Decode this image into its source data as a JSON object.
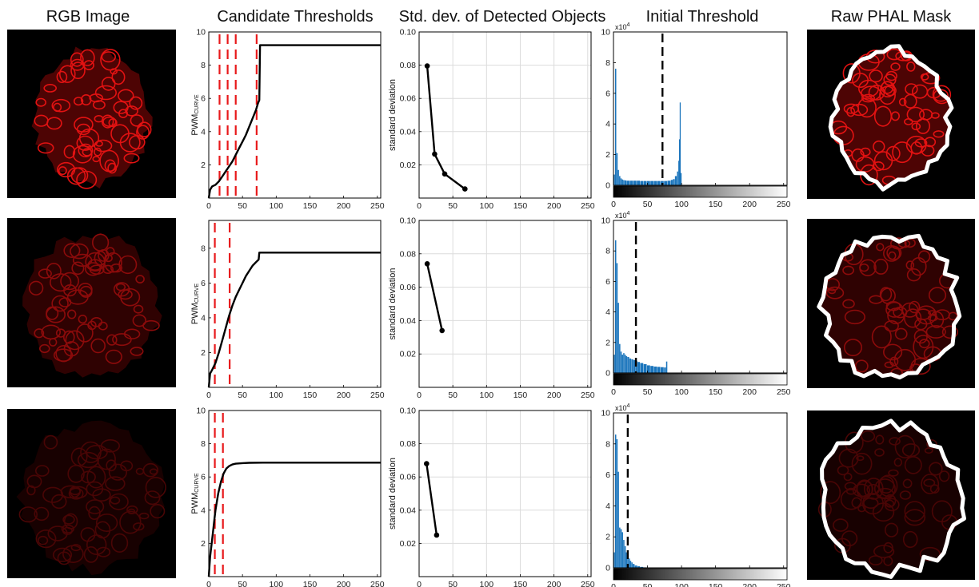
{
  "column_titles": [
    "RGB Image",
    "Candidate Thresholds",
    "Std. dev. of Detected Objects",
    "Initial Threshold",
    "Raw PHAL Mask"
  ],
  "colors": {
    "curve": "#000000",
    "threshold_marker": "#e8191b",
    "histogram": "#1b75bc",
    "mask_outline": "#ffffff",
    "cell_red": "#e21212",
    "image_bg": "#000000",
    "grid": "#dcdcdc"
  },
  "chart_data": [
    {
      "type": "line",
      "panel": "Candidate Thresholds",
      "row": 1,
      "ylabel_main": "PWM",
      "ylabel_sub": "CURVE",
      "xlim": [
        0,
        255
      ],
      "ylim": [
        0,
        10
      ],
      "xticks": [
        0,
        50,
        100,
        150,
        200,
        250
      ],
      "yticks": [
        2,
        4,
        6,
        8,
        10
      ],
      "series": [
        {
          "x": [
            0,
            2,
            5,
            10,
            15,
            20,
            25,
            30,
            35,
            40,
            45,
            50,
            55,
            60,
            65,
            70,
            73,
            75,
            76,
            80,
            120,
            180,
            255
          ],
          "y": [
            0,
            0.5,
            0.7,
            0.8,
            1.0,
            1.3,
            1.6,
            1.9,
            2.2,
            2.6,
            3.0,
            3.4,
            3.8,
            4.3,
            4.8,
            5.3,
            5.7,
            5.9,
            9.2,
            9.2,
            9.2,
            9.2,
            9.2
          ]
        }
      ],
      "thresholds": [
        16,
        28,
        40,
        71
      ]
    },
    {
      "type": "line",
      "panel": "Candidate Thresholds",
      "row": 2,
      "ylabel_main": "PWM",
      "ylabel_sub": "CURVE",
      "xlim": [
        0,
        255
      ],
      "ylim": [
        0,
        9.6
      ],
      "xticks": [
        0,
        50,
        100,
        150,
        200,
        250
      ],
      "yticks": [
        2,
        4,
        6,
        8
      ],
      "series": [
        {
          "x": [
            0,
            2,
            5,
            10,
            15,
            20,
            25,
            30,
            35,
            40,
            45,
            50,
            55,
            60,
            65,
            70,
            74,
            75,
            76,
            100,
            180,
            255
          ],
          "y": [
            0,
            0.8,
            1.0,
            1.4,
            2.0,
            2.7,
            3.4,
            4.1,
            4.7,
            5.2,
            5.6,
            6.0,
            6.4,
            6.7,
            7.0,
            7.2,
            7.35,
            7.75,
            7.75,
            7.75,
            7.75,
            7.75
          ]
        }
      ],
      "thresholds": [
        9,
        31
      ]
    },
    {
      "type": "line",
      "panel": "Candidate Thresholds",
      "row": 3,
      "ylabel_main": "PWM",
      "ylabel_sub": "CURVE",
      "xlim": [
        0,
        255
      ],
      "ylim": [
        0,
        10
      ],
      "xticks": [
        0,
        50,
        100,
        150,
        200,
        250
      ],
      "yticks": [
        2,
        4,
        6,
        8,
        10
      ],
      "series": [
        {
          "x": [
            0,
            2,
            4,
            6,
            8,
            10,
            14,
            18,
            22,
            26,
            30,
            35,
            40,
            50,
            60,
            80,
            120,
            200,
            255
          ],
          "y": [
            0,
            1.2,
            1.9,
            2.6,
            3.3,
            4.0,
            5.0,
            5.7,
            6.2,
            6.5,
            6.65,
            6.75,
            6.8,
            6.83,
            6.85,
            6.86,
            6.86,
            6.86,
            6.86
          ]
        }
      ],
      "thresholds": [
        9,
        21
      ]
    },
    {
      "type": "line",
      "panel": "Std. dev. of Detected Objects",
      "row": 1,
      "ylabel": "standard deviation",
      "xlim": [
        0,
        255
      ],
      "ylim": [
        0,
        0.1
      ],
      "xticks": [
        0,
        50,
        100,
        150,
        200,
        250
      ],
      "yticks": [
        0.02,
        0.04,
        0.06,
        0.08,
        0.1
      ],
      "ytick_labels": [
        "0.02",
        "0.04",
        "0.06",
        "0.08",
        "0.10"
      ],
      "series": [
        {
          "x": [
            12,
            23,
            38,
            68
          ],
          "y": [
            0.0795,
            0.0265,
            0.0145,
            0.0055
          ]
        }
      ]
    },
    {
      "type": "line",
      "panel": "Std. dev. of Detected Objects",
      "row": 2,
      "ylabel": "standard deviation",
      "xlim": [
        0,
        255
      ],
      "ylim": [
        0,
        0.1
      ],
      "xticks": [
        0,
        50,
        100,
        150,
        200,
        250
      ],
      "yticks": [
        0.02,
        0.04,
        0.06,
        0.08,
        0.1
      ],
      "ytick_labels": [
        "0.02",
        "0.04",
        "0.06",
        "0.08",
        "0.10"
      ],
      "series": [
        {
          "x": [
            12,
            34
          ],
          "y": [
            0.074,
            0.034
          ]
        }
      ]
    },
    {
      "type": "line",
      "panel": "Std. dev. of Detected Objects",
      "row": 3,
      "ylabel": "standard deviation",
      "xlim": [
        0,
        255
      ],
      "ylim": [
        0,
        0.1
      ],
      "xticks": [
        0,
        50,
        100,
        150,
        200,
        250
      ],
      "yticks": [
        0.02,
        0.04,
        0.06,
        0.08,
        0.1
      ],
      "ytick_labels": [
        "0.02",
        "0.04",
        "0.06",
        "0.08",
        "0.10"
      ],
      "series": [
        {
          "x": [
            11,
            26
          ],
          "y": [
            0.068,
            0.025
          ]
        }
      ]
    },
    {
      "type": "bar",
      "panel": "Initial Threshold",
      "row": 1,
      "exponent_label": "x10",
      "exponent_power": "4",
      "xlim": [
        0,
        255
      ],
      "ylim": [
        0,
        10
      ],
      "xticks": [
        0,
        50,
        100,
        150,
        200,
        250
      ],
      "yticks": [
        0,
        2,
        4,
        6,
        8,
        10
      ],
      "bins_x": [
        1,
        3,
        5,
        7,
        9,
        11,
        13,
        15,
        17,
        20,
        25,
        30,
        35,
        40,
        45,
        50,
        55,
        60,
        65,
        70,
        75,
        80,
        85,
        88,
        91,
        94,
        96,
        97,
        98,
        99
      ],
      "counts": [
        0.7,
        7.6,
        2.1,
        1.0,
        0.6,
        0.45,
        0.38,
        0.34,
        0.32,
        0.3,
        0.3,
        0.3,
        0.3,
        0.28,
        0.28,
        0.28,
        0.28,
        0.28,
        0.28,
        0.28,
        0.28,
        0.3,
        0.35,
        0.4,
        0.6,
        0.9,
        1.6,
        3.0,
        5.4,
        0.8
      ],
      "threshold_x": 72
    },
    {
      "type": "bar",
      "panel": "Initial Threshold",
      "row": 2,
      "exponent_label": "x10",
      "exponent_power": "4",
      "xlim": [
        0,
        255
      ],
      "ylim": [
        0,
        10
      ],
      "xticks": [
        0,
        50,
        100,
        150,
        200,
        250
      ],
      "yticks": [
        0,
        2,
        4,
        6,
        8,
        10
      ],
      "bins_x": [
        1,
        3,
        5,
        7,
        9,
        11,
        13,
        15,
        17,
        19,
        21,
        24,
        27,
        30,
        33,
        36,
        40,
        45,
        50,
        55,
        60,
        65,
        70,
        75,
        78
      ],
      "counts": [
        1.2,
        8.7,
        7.2,
        4.6,
        1.9,
        1.4,
        1.2,
        1.3,
        1.2,
        1.1,
        1.05,
        0.95,
        0.9,
        0.85,
        0.8,
        0.72,
        0.65,
        0.58,
        0.5,
        0.46,
        0.42,
        0.4,
        0.38,
        0.36,
        0.75
      ],
      "threshold_x": 33
    },
    {
      "type": "bar",
      "panel": "Initial Threshold",
      "row": 3,
      "exponent_label": "x10",
      "exponent_power": "4",
      "xlim": [
        0,
        255
      ],
      "ylim": [
        0,
        10
      ],
      "xticks": [
        0,
        50,
        100,
        150,
        200,
        250
      ],
      "yticks": [
        0,
        2,
        4,
        6,
        8,
        10
      ],
      "bins_x": [
        1,
        3,
        5,
        7,
        9,
        11,
        13,
        15,
        17,
        19,
        21,
        23,
        25,
        27,
        29,
        32,
        36,
        40,
        45,
        50
      ],
      "counts": [
        1.0,
        8.6,
        8.3,
        6.2,
        2.6,
        2.5,
        2.3,
        1.8,
        1.4,
        1.0,
        0.8,
        0.6,
        0.45,
        0.35,
        0.25,
        0.15,
        0.1,
        0.06,
        0.03,
        0.01
      ],
      "threshold_x": 21
    }
  ]
}
